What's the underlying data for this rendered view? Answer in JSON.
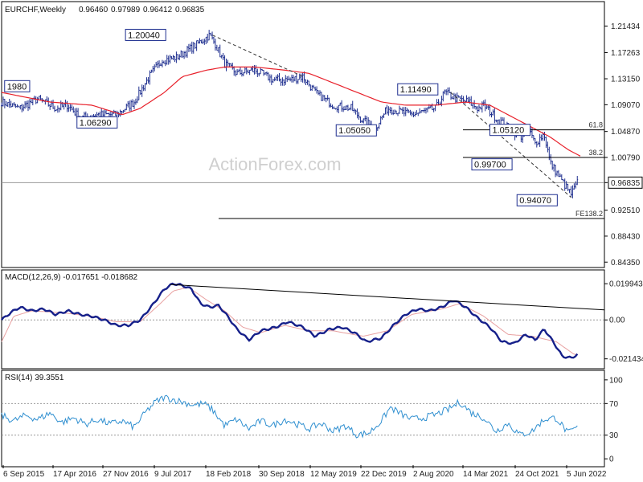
{
  "chart_data": [
    {
      "type": "candlestick",
      "title": "EURCHF,Weekly",
      "ohlc_readout": [
        "0.96460",
        "0.97989",
        "0.96412",
        "0.96835"
      ],
      "last_price": "0.96835",
      "watermark": "ActionForex.com",
      "y_ticks": [
        "1.21434",
        "1.17263",
        "1.13150",
        "1.09070",
        "1.04870",
        "1.00790",
        "0.96835",
        "0.92510",
        "0.88430",
        "0.84350"
      ],
      "x_ticks": [
        "6 Sep 2015",
        "17 Apr 2016",
        "27 Nov 2016",
        "9 Jul 2017",
        "18 Feb 2018",
        "30 Sep 2018",
        "12 May 2019",
        "22 Dec 2019",
        "2 Aug 2020",
        "14 Mar 2021",
        "24 Oct 2021",
        "5 Jun 2022"
      ],
      "price_labels": [
        {
          "text": "1.20040",
          "x": 0.2055,
          "y": 1.2004
        },
        {
          "text": "1980",
          "x": 0.005,
          "y": 1.1198
        },
        {
          "text": "1.06290",
          "x": 0.125,
          "y": 1.0629
        },
        {
          "text": "1.05050",
          "x": 0.555,
          "y": 1.0505
        },
        {
          "text": "1.11490",
          "x": 0.657,
          "y": 1.1149
        },
        {
          "text": "1.05120",
          "x": 0.81,
          "y": 1.0512
        },
        {
          "text": "0.99700",
          "x": 0.78,
          "y": 0.997
        },
        {
          "text": "0.94070",
          "x": 0.855,
          "y": 0.9407
        }
      ],
      "fib_levels": [
        {
          "label": "61.8",
          "y": 1.0512
        },
        {
          "label": "38.2",
          "y": 1.0079
        },
        {
          "label": "FE138.2",
          "y": 0.912
        }
      ],
      "ylim": [
        0.835,
        1.23
      ],
      "series": {
        "close_anchors": [
          [
            0.0,
            1.095
          ],
          [
            0.03,
            1.085
          ],
          [
            0.06,
            1.1
          ],
          [
            0.09,
            1.085
          ],
          [
            0.11,
            1.09
          ],
          [
            0.13,
            1.07
          ],
          [
            0.16,
            1.075
          ],
          [
            0.19,
            1.075
          ],
          [
            0.22,
            1.095
          ],
          [
            0.245,
            1.135
          ],
          [
            0.265,
            1.16
          ],
          [
            0.29,
            1.165
          ],
          [
            0.315,
            1.18
          ],
          [
            0.33,
            1.19
          ],
          [
            0.345,
            1.2
          ],
          [
            0.355,
            1.185
          ],
          [
            0.37,
            1.155
          ],
          [
            0.39,
            1.14
          ],
          [
            0.42,
            1.145
          ],
          [
            0.45,
            1.13
          ],
          [
            0.48,
            1.13
          ],
          [
            0.5,
            1.135
          ],
          [
            0.52,
            1.11
          ],
          [
            0.55,
            1.09
          ],
          [
            0.58,
            1.085
          ],
          [
            0.6,
            1.065
          ],
          [
            0.62,
            1.055
          ],
          [
            0.64,
            1.085
          ],
          [
            0.66,
            1.08
          ],
          [
            0.68,
            1.075
          ],
          [
            0.7,
            1.08
          ],
          [
            0.72,
            1.085
          ],
          [
            0.735,
            1.11
          ],
          [
            0.755,
            1.1
          ],
          [
            0.775,
            1.095
          ],
          [
            0.79,
            1.085
          ],
          [
            0.8,
            1.09
          ],
          [
            0.82,
            1.07
          ],
          [
            0.84,
            1.055
          ],
          [
            0.86,
            1.04
          ],
          [
            0.875,
            1.05
          ],
          [
            0.885,
            1.03
          ],
          [
            0.9,
            1.045
          ],
          [
            0.91,
            1.0
          ],
          [
            0.93,
            0.97
          ],
          [
            0.945,
            0.95
          ],
          [
            0.955,
            0.968
          ]
        ],
        "ma_anchors": [
          [
            0.0,
            1.11
          ],
          [
            0.08,
            1.095
          ],
          [
            0.15,
            1.09
          ],
          [
            0.2,
            1.075
          ],
          [
            0.23,
            1.085
          ],
          [
            0.27,
            1.11
          ],
          [
            0.3,
            1.135
          ],
          [
            0.34,
            1.145
          ],
          [
            0.37,
            1.15
          ],
          [
            0.42,
            1.15
          ],
          [
            0.47,
            1.145
          ],
          [
            0.51,
            1.14
          ],
          [
            0.55,
            1.125
          ],
          [
            0.59,
            1.11
          ],
          [
            0.63,
            1.095
          ],
          [
            0.67,
            1.09
          ],
          [
            0.72,
            1.09
          ],
          [
            0.77,
            1.095
          ],
          [
            0.81,
            1.09
          ],
          [
            0.85,
            1.07
          ],
          [
            0.88,
            1.055
          ],
          [
            0.91,
            1.04
          ],
          [
            0.94,
            1.02
          ],
          [
            0.96,
            1.01
          ]
        ],
        "trendlines": [
          {
            "from": [
              0.35,
              1.2
            ],
            "to": [
              0.5,
              1.135
            ]
          },
          {
            "from": [
              0.745,
              1.11
            ],
            "to": [
              0.945,
              0.945
            ]
          }
        ]
      }
    },
    {
      "type": "line",
      "title": "MACD(12,26,9) -0.017651 -0.018682",
      "y_ticks": [
        "0.019943",
        "0.00",
        "-0.021434"
      ],
      "ylim": [
        -0.026,
        0.024
      ],
      "macd_anchors": [
        [
          0.0,
          0.0
        ],
        [
          0.015,
          0.004
        ],
        [
          0.03,
          0.007
        ],
        [
          0.05,
          0.005
        ],
        [
          0.07,
          0.006
        ],
        [
          0.09,
          0.003
        ],
        [
          0.11,
          0.005
        ],
        [
          0.13,
          0.003
        ],
        [
          0.15,
          0.002
        ],
        [
          0.17,
          0.0
        ],
        [
          0.19,
          -0.003
        ],
        [
          0.21,
          -0.003
        ],
        [
          0.23,
          0.0
        ],
        [
          0.25,
          0.008
        ],
        [
          0.27,
          0.017
        ],
        [
          0.285,
          0.02
        ],
        [
          0.3,
          0.019
        ],
        [
          0.315,
          0.017
        ],
        [
          0.33,
          0.009
        ],
        [
          0.345,
          0.007
        ],
        [
          0.36,
          0.008
        ],
        [
          0.375,
          0.002
        ],
        [
          0.39,
          -0.005
        ],
        [
          0.41,
          -0.011
        ],
        [
          0.43,
          -0.006
        ],
        [
          0.455,
          -0.004
        ],
        [
          0.475,
          -0.001
        ],
        [
          0.5,
          -0.004
        ],
        [
          0.52,
          -0.009
        ],
        [
          0.545,
          -0.005
        ],
        [
          0.565,
          -0.004
        ],
        [
          0.585,
          -0.007
        ],
        [
          0.605,
          -0.012
        ],
        [
          0.63,
          -0.01
        ],
        [
          0.65,
          -0.003
        ],
        [
          0.67,
          0.003
        ],
        [
          0.69,
          0.006
        ],
        [
          0.71,
          0.005
        ],
        [
          0.73,
          0.007
        ],
        [
          0.75,
          0.011
        ],
        [
          0.77,
          0.007
        ],
        [
          0.79,
          0.001
        ],
        [
          0.81,
          -0.004
        ],
        [
          0.83,
          -0.012
        ],
        [
          0.85,
          -0.013
        ],
        [
          0.87,
          -0.008
        ],
        [
          0.885,
          -0.011
        ],
        [
          0.9,
          -0.005
        ],
        [
          0.915,
          -0.012
        ],
        [
          0.93,
          -0.02
        ],
        [
          0.945,
          -0.021
        ],
        [
          0.955,
          -0.019
        ]
      ],
      "signal_anchors": [
        [
          0.0,
          -0.012
        ],
        [
          0.02,
          0.002
        ],
        [
          0.05,
          0.005
        ],
        [
          0.1,
          0.004
        ],
        [
          0.15,
          0.002
        ],
        [
          0.19,
          -0.001
        ],
        [
          0.23,
          -0.001
        ],
        [
          0.26,
          0.008
        ],
        [
          0.285,
          0.016
        ],
        [
          0.31,
          0.018
        ],
        [
          0.34,
          0.011
        ],
        [
          0.37,
          0.005
        ],
        [
          0.4,
          -0.004
        ],
        [
          0.43,
          -0.007
        ],
        [
          0.47,
          -0.003
        ],
        [
          0.51,
          -0.006
        ],
        [
          0.55,
          -0.006
        ],
        [
          0.6,
          -0.009
        ],
        [
          0.64,
          -0.006
        ],
        [
          0.68,
          0.003
        ],
        [
          0.73,
          0.006
        ],
        [
          0.76,
          0.009
        ],
        [
          0.8,
          0.002
        ],
        [
          0.84,
          -0.008
        ],
        [
          0.88,
          -0.009
        ],
        [
          0.92,
          -0.012
        ],
        [
          0.95,
          -0.019
        ],
        [
          0.96,
          -0.019
        ]
      ],
      "trendline": {
        "from": [
          0.28,
          0.0195
        ],
        "to": [
          1.0,
          0.0055
        ]
      }
    },
    {
      "type": "line",
      "title": "RSI(14) 39.3551",
      "y_ticks": [
        "100",
        "70",
        "30",
        "0"
      ],
      "ylim": [
        -8,
        108
      ],
      "rsi_anchors": [
        [
          0.0,
          55
        ],
        [
          0.02,
          48
        ],
        [
          0.04,
          55
        ],
        [
          0.06,
          50
        ],
        [
          0.08,
          58
        ],
        [
          0.1,
          46
        ],
        [
          0.12,
          52
        ],
        [
          0.14,
          44
        ],
        [
          0.16,
          50
        ],
        [
          0.18,
          44
        ],
        [
          0.2,
          48
        ],
        [
          0.22,
          40
        ],
        [
          0.24,
          60
        ],
        [
          0.255,
          72
        ],
        [
          0.27,
          78
        ],
        [
          0.285,
          75
        ],
        [
          0.3,
          72
        ],
        [
          0.32,
          68
        ],
        [
          0.335,
          70
        ],
        [
          0.35,
          62
        ],
        [
          0.37,
          42
        ],
        [
          0.39,
          50
        ],
        [
          0.41,
          38
        ],
        [
          0.43,
          48
        ],
        [
          0.45,
          42
        ],
        [
          0.47,
          50
        ],
        [
          0.49,
          44
        ],
        [
          0.51,
          38
        ],
        [
          0.53,
          45
        ],
        [
          0.55,
          35
        ],
        [
          0.57,
          42
        ],
        [
          0.59,
          30
        ],
        [
          0.61,
          33
        ],
        [
          0.63,
          48
        ],
        [
          0.645,
          65
        ],
        [
          0.66,
          58
        ],
        [
          0.68,
          50
        ],
        [
          0.7,
          52
        ],
        [
          0.72,
          56
        ],
        [
          0.74,
          62
        ],
        [
          0.76,
          72
        ],
        [
          0.78,
          58
        ],
        [
          0.8,
          52
        ],
        [
          0.82,
          35
        ],
        [
          0.84,
          45
        ],
        [
          0.86,
          30
        ],
        [
          0.88,
          35
        ],
        [
          0.9,
          50
        ],
        [
          0.92,
          52
        ],
        [
          0.94,
          32
        ],
        [
          0.95,
          38
        ],
        [
          0.955,
          39
        ]
      ]
    }
  ]
}
